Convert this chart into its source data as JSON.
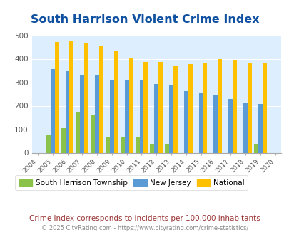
{
  "title": "South Harrison Violent Crime Index",
  "years": [
    2004,
    2005,
    2006,
    2007,
    2008,
    2009,
    2010,
    2011,
    2012,
    2013,
    2014,
    2015,
    2016,
    2017,
    2018,
    2019,
    2020
  ],
  "south_harrison": [
    0,
    75,
    105,
    173,
    160,
    65,
    65,
    68,
    38,
    38,
    0,
    0,
    0,
    0,
    0,
    38,
    0
  ],
  "new_jersey": [
    0,
    355,
    350,
    330,
    330,
    312,
    310,
    310,
    293,
    290,
    262,
    257,
    248,
    230,
    210,
    207,
    0
  ],
  "national": [
    0,
    470,
    473,
    467,
    455,
    432,
    405,
    387,
    387,
    367,
    377,
    383,
    398,
    394,
    380,
    380,
    0
  ],
  "color_sh": "#8bc34a",
  "color_nj": "#5b9bd5",
  "color_nat": "#ffc000",
  "ylim": [
    0,
    500
  ],
  "yticks": [
    0,
    100,
    200,
    300,
    400,
    500
  ],
  "bg_color": "#ddeeff",
  "grid_color": "#ffffff",
  "title_color": "#1050a0",
  "footnote": "Crime Index corresponds to incidents per 100,000 inhabitants",
  "copyright": "© 2025 CityRating.com - https://www.cityrating.com/crime-statistics/",
  "footnote_color": "#993333",
  "copyright_color": "#888888"
}
